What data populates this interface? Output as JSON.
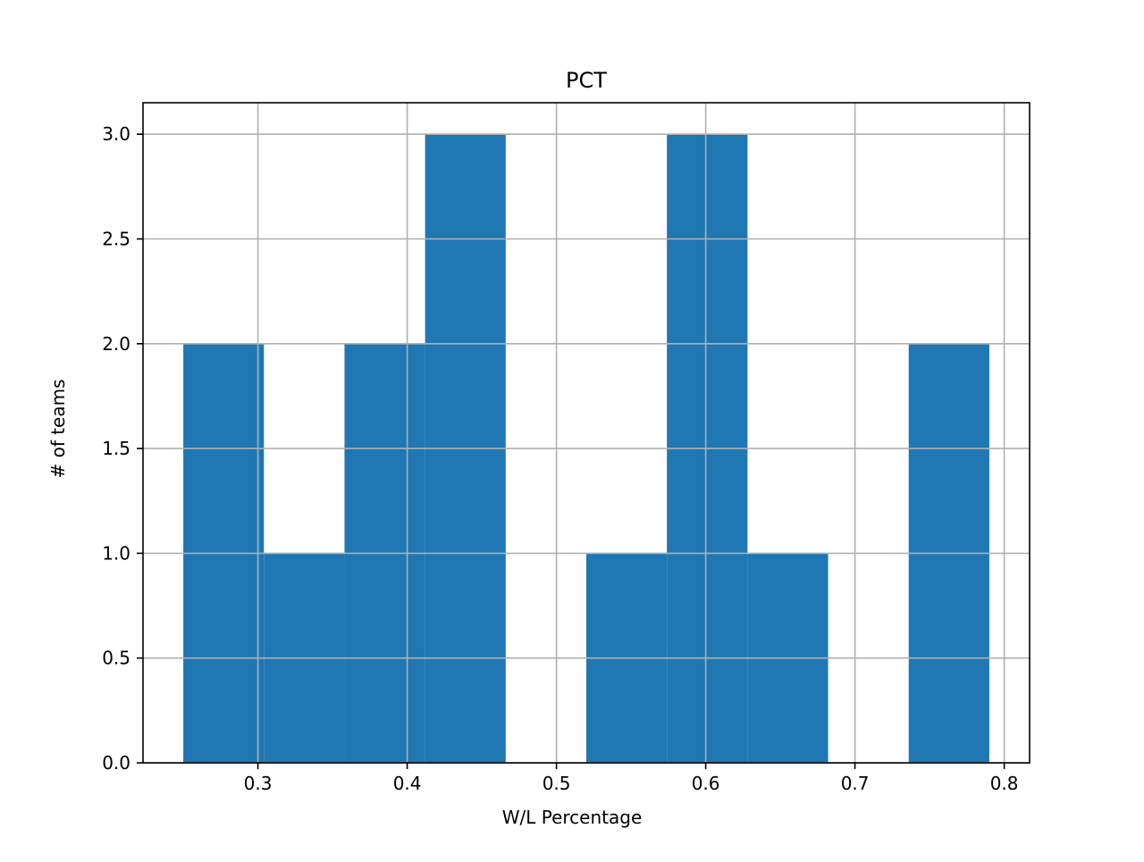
{
  "chart_data": {
    "type": "bar",
    "title": "PCT",
    "xlabel": "W/L Percentage",
    "ylabel": "# of teams",
    "bins": [
      {
        "x0": 0.25,
        "x1": 0.304,
        "count": 2
      },
      {
        "x0": 0.304,
        "x1": 0.358,
        "count": 1
      },
      {
        "x0": 0.358,
        "x1": 0.412,
        "count": 2
      },
      {
        "x0": 0.412,
        "x1": 0.466,
        "count": 3
      },
      {
        "x0": 0.466,
        "x1": 0.52,
        "count": 0
      },
      {
        "x0": 0.52,
        "x1": 0.574,
        "count": 1
      },
      {
        "x0": 0.574,
        "x1": 0.628,
        "count": 3
      },
      {
        "x0": 0.628,
        "x1": 0.682,
        "count": 1
      },
      {
        "x0": 0.682,
        "x1": 0.736,
        "count": 0
      },
      {
        "x0": 0.736,
        "x1": 0.79,
        "count": 2
      }
    ],
    "xlim": [
      0.223,
      0.817
    ],
    "ylim": [
      0,
      3.15
    ],
    "xticks": [
      0.3,
      0.4,
      0.5,
      0.6,
      0.7,
      0.8
    ],
    "xtick_labels": [
      "0.3",
      "0.4",
      "0.5",
      "0.6",
      "0.7",
      "0.8"
    ],
    "yticks": [
      0.0,
      0.5,
      1.0,
      1.5,
      2.0,
      2.5,
      3.0
    ],
    "ytick_labels": [
      "0.0",
      "0.5",
      "1.0",
      "1.5",
      "2.0",
      "2.5",
      "3.0"
    ],
    "grid": true,
    "bar_color": "#1f77b4",
    "grid_color": "#b0b0b0"
  }
}
